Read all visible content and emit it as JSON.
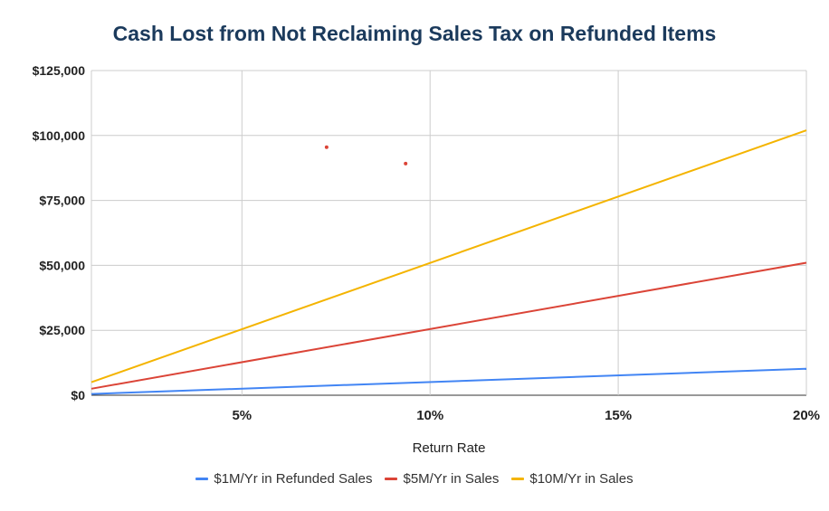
{
  "chart_data": {
    "type": "line",
    "title": "Cash Lost from Not Reclaiming Sales Tax on Refunded Items",
    "xlabel": "Return Rate",
    "ylabel": "",
    "x_ticks": [
      {
        "value": 0.05,
        "label": "5%"
      },
      {
        "value": 0.1,
        "label": "10%"
      },
      {
        "value": 0.15,
        "label": "15%"
      },
      {
        "value": 0.2,
        "label": "20%"
      }
    ],
    "y_ticks": [
      {
        "value": 0,
        "label": "$0"
      },
      {
        "value": 25000,
        "label": "$25,000"
      },
      {
        "value": 50000,
        "label": "$50,000"
      },
      {
        "value": 75000,
        "label": "$75,000"
      },
      {
        "value": 100000,
        "label": "$100,000"
      },
      {
        "value": 125000,
        "label": "$125,000"
      }
    ],
    "xlim": [
      0.01,
      0.2
    ],
    "ylim": [
      0,
      125000
    ],
    "grid": true,
    "legend_position": "bottom",
    "series": [
      {
        "name": "$1M/Yr in Refunded Sales",
        "color": "#4285f4",
        "x": [
          0.01,
          0.2
        ],
        "y": [
          500,
          10200
        ]
      },
      {
        "name": "$5M/Yr in Sales",
        "color": "#db4437",
        "x": [
          0.01,
          0.2
        ],
        "y": [
          2500,
          51000
        ]
      },
      {
        "name": "$10M/Yr in Sales",
        "color": "#f4b400",
        "x": [
          0.01,
          0.2
        ],
        "y": [
          5000,
          102000
        ]
      }
    ],
    "stray_points": [
      {
        "x": 0.0725,
        "y": 95500,
        "color": "#db4437"
      },
      {
        "x": 0.0935,
        "y": 89200,
        "color": "#db4437"
      }
    ]
  }
}
